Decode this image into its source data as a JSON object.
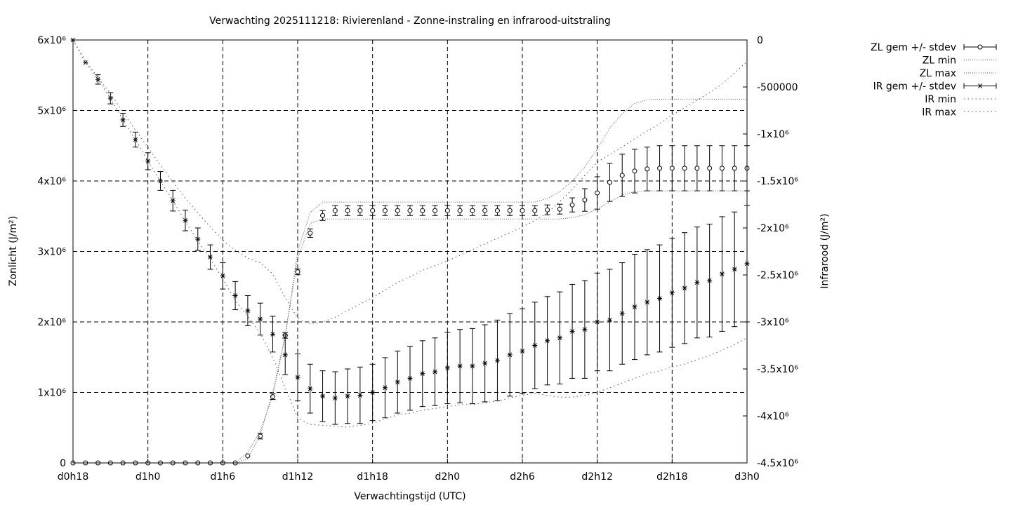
{
  "chart_data": {
    "type": "line",
    "title": "Verwachting 2025111218: Rivierenland - Zonne-instraling en infrarood-uitstraling",
    "xlabel": "Verwachtingstijd (UTC)",
    "ylabel_left": "Zonlicht (J/m²)",
    "ylabel_right": "Infrarood (J/m²)",
    "xlim": [
      18,
      72
    ],
    "x_ticks": [
      {
        "v": 18,
        "label": "d0h18"
      },
      {
        "v": 24,
        "label": "d1h0"
      },
      {
        "v": 30,
        "label": "d1h6"
      },
      {
        "v": 36,
        "label": "d1h12"
      },
      {
        "v": 42,
        "label": "d1h18"
      },
      {
        "v": 48,
        "label": "d2h0"
      },
      {
        "v": 54,
        "label": "d2h6"
      },
      {
        "v": 60,
        "label": "d2h12"
      },
      {
        "v": 66,
        "label": "d2h18"
      },
      {
        "v": 72,
        "label": "d3h0"
      }
    ],
    "ylim_left": [
      0,
      6000000
    ],
    "y_left_ticks": [
      {
        "v": 0,
        "label": "0"
      },
      {
        "v": 1000000,
        "label": "1x10⁶"
      },
      {
        "v": 2000000,
        "label": "2x10⁶"
      },
      {
        "v": 3000000,
        "label": "3x10⁶"
      },
      {
        "v": 4000000,
        "label": "4x10⁶"
      },
      {
        "v": 5000000,
        "label": "5x10⁶"
      },
      {
        "v": 6000000,
        "label": "6x10⁶"
      }
    ],
    "ylim_right": [
      -4500000,
      0
    ],
    "y_right_ticks": [
      {
        "v": 0,
        "label": "0"
      },
      {
        "v": -500000,
        "label": "-500000"
      },
      {
        "v": -1000000,
        "label": "-1x10⁶"
      },
      {
        "v": -1500000,
        "label": "-1.5x10⁶"
      },
      {
        "v": -2000000,
        "label": "-2x10⁶"
      },
      {
        "v": -2500000,
        "label": "-2.5x10⁶"
      },
      {
        "v": -3000000,
        "label": "-3x10⁶"
      },
      {
        "v": -3500000,
        "label": "-3.5x10⁶"
      },
      {
        "v": -4000000,
        "label": "-4x10⁶"
      },
      {
        "v": -4500000,
        "label": "-4.5x10⁶"
      }
    ],
    "grid": true,
    "legend_position": "outside-right",
    "x": [
      18,
      19,
      20,
      21,
      22,
      23,
      24,
      25,
      26,
      27,
      28,
      29,
      30,
      31,
      32,
      33,
      34,
      35,
      36,
      37,
      38,
      39,
      40,
      41,
      42,
      43,
      44,
      45,
      46,
      47,
      48,
      49,
      50,
      51,
      52,
      53,
      54,
      55,
      56,
      57,
      58,
      59,
      60,
      61,
      62,
      63,
      64,
      65,
      66,
      67,
      68,
      69,
      70,
      71,
      72
    ],
    "series": [
      {
        "name": "ZL gem +/- stdev",
        "axis": "left",
        "marker": "circle",
        "values": [
          0,
          0,
          0,
          0,
          0,
          0,
          0,
          0,
          0,
          0,
          0,
          0,
          0,
          0,
          100000,
          380000,
          940000,
          1810000,
          2710000,
          3260000,
          3510000,
          3580000,
          3580000,
          3580000,
          3580000,
          3580000,
          3580000,
          3580000,
          3580000,
          3580000,
          3580000,
          3580000,
          3580000,
          3580000,
          3580000,
          3580000,
          3580000,
          3580000,
          3590000,
          3600000,
          3660000,
          3730000,
          3830000,
          3980000,
          4080000,
          4140000,
          4170000,
          4180000,
          4180000,
          4180000,
          4180000,
          4180000,
          4180000,
          4180000,
          4180000
        ],
        "stdev": [
          0,
          0,
          0,
          0,
          0,
          0,
          0,
          0,
          0,
          0,
          0,
          0,
          0,
          0,
          0,
          40000,
          40000,
          40000,
          40000,
          60000,
          70000,
          70000,
          70000,
          70000,
          70000,
          70000,
          70000,
          70000,
          70000,
          70000,
          70000,
          70000,
          70000,
          70000,
          70000,
          70000,
          70000,
          70000,
          70000,
          70000,
          100000,
          160000,
          230000,
          270000,
          300000,
          310000,
          310000,
          320000,
          320000,
          320000,
          320000,
          320000,
          320000,
          320000,
          320000
        ]
      },
      {
        "name": "ZL min",
        "axis": "left",
        "style": "dotted",
        "values": [
          0,
          0,
          0,
          0,
          0,
          0,
          0,
          0,
          0,
          0,
          0,
          0,
          0,
          0,
          60000,
          400000,
          1000000,
          1800000,
          2900000,
          3400000,
          3460000,
          3460000,
          3460000,
          3460000,
          3460000,
          3460000,
          3460000,
          3460000,
          3460000,
          3460000,
          3460000,
          3460000,
          3460000,
          3460000,
          3460000,
          3460000,
          3460000,
          3460000,
          3460000,
          3460000,
          3480000,
          3520000,
          3600000,
          3700000,
          3800000,
          3850000,
          3860000,
          3860000,
          3860000,
          3860000,
          3860000,
          3860000,
          3860000,
          3860000,
          3860000
        ]
      },
      {
        "name": "ZL max",
        "axis": "left",
        "style": "dotted",
        "values": [
          0,
          0,
          0,
          0,
          0,
          0,
          0,
          0,
          0,
          0,
          0,
          0,
          0,
          0,
          150000,
          450000,
          950000,
          1800000,
          3000000,
          3550000,
          3700000,
          3700000,
          3700000,
          3700000,
          3700000,
          3700000,
          3700000,
          3700000,
          3700000,
          3700000,
          3700000,
          3700000,
          3700000,
          3700000,
          3700000,
          3700000,
          3700000,
          3700000,
          3750000,
          3850000,
          4000000,
          4200000,
          4450000,
          4750000,
          4950000,
          5100000,
          5150000,
          5160000,
          5160000,
          5160000,
          5160000,
          5160000,
          5160000,
          5160000,
          5160000
        ]
      },
      {
        "name": "IR gem +/- stdev",
        "axis": "right",
        "marker": "star",
        "values": [
          0,
          -240000,
          -420000,
          -620000,
          -850000,
          -1060000,
          -1290000,
          -1500000,
          -1710000,
          -1920000,
          -2120000,
          -2310000,
          -2510000,
          -2720000,
          -2880000,
          -2970000,
          -3130000,
          -3350000,
          -3590000,
          -3710000,
          -3790000,
          -3810000,
          -3790000,
          -3780000,
          -3750000,
          -3700000,
          -3640000,
          -3600000,
          -3550000,
          -3530000,
          -3490000,
          -3470000,
          -3470000,
          -3440000,
          -3410000,
          -3350000,
          -3310000,
          -3250000,
          -3200000,
          -3170000,
          -3100000,
          -3080000,
          -3000000,
          -2980000,
          -2910000,
          -2840000,
          -2790000,
          -2750000,
          -2690000,
          -2640000,
          -2580000,
          -2560000,
          -2490000,
          -2440000,
          -2380000
        ],
        "stdev": [
          0,
          0,
          50000,
          60000,
          70000,
          80000,
          90000,
          100000,
          110000,
          110000,
          120000,
          130000,
          140000,
          150000,
          160000,
          170000,
          190000,
          210000,
          250000,
          260000,
          270000,
          280000,
          290000,
          300000,
          300000,
          320000,
          330000,
          340000,
          350000,
          360000,
          380000,
          390000,
          400000,
          410000,
          430000,
          440000,
          450000,
          460000,
          470000,
          490000,
          500000,
          520000,
          520000,
          540000,
          540000,
          560000,
          560000,
          570000,
          580000,
          590000,
          590000,
          600000,
          610000,
          610000,
          620000
        ]
      },
      {
        "name": "IR min",
        "axis": "right",
        "style": "dotted",
        "values": [
          0,
          -240000,
          -420000,
          -620000,
          -850000,
          -1060000,
          -1290000,
          -1500000,
          -1710000,
          -1930000,
          -2140000,
          -2330000,
          -2540000,
          -2770000,
          -2940000,
          -3120000,
          -3380000,
          -3700000,
          -4020000,
          -4090000,
          -4100000,
          -4110000,
          -4120000,
          -4100000,
          -4080000,
          -4030000,
          -3990000,
          -3970000,
          -3940000,
          -3920000,
          -3900000,
          -3880000,
          -3880000,
          -3860000,
          -3840000,
          -3810000,
          -3780000,
          -3760000,
          -3780000,
          -3800000,
          -3800000,
          -3780000,
          -3750000,
          -3700000,
          -3650000,
          -3600000,
          -3550000,
          -3520000,
          -3480000,
          -3450000,
          -3400000,
          -3360000,
          -3300000,
          -3240000,
          -3170000
        ]
      },
      {
        "name": "IR max",
        "axis": "right",
        "style": "dotted",
        "values": [
          0,
          -220000,
          -400000,
          -570000,
          -770000,
          -960000,
          -1140000,
          -1330000,
          -1510000,
          -1680000,
          -1840000,
          -1990000,
          -2130000,
          -2240000,
          -2320000,
          -2370000,
          -2490000,
          -2740000,
          -2960000,
          -3020000,
          -3000000,
          -2950000,
          -2880000,
          -2810000,
          -2740000,
          -2660000,
          -2580000,
          -2520000,
          -2450000,
          -2400000,
          -2350000,
          -2290000,
          -2230000,
          -2170000,
          -2110000,
          -2050000,
          -1990000,
          -1920000,
          -1840000,
          -1720000,
          -1590000,
          -1440000,
          -1300000,
          -1220000,
          -1140000,
          -1050000,
          -970000,
          -890000,
          -800000,
          -720000,
          -640000,
          -560000,
          -470000,
          -350000,
          -230000
        ]
      }
    ]
  }
}
